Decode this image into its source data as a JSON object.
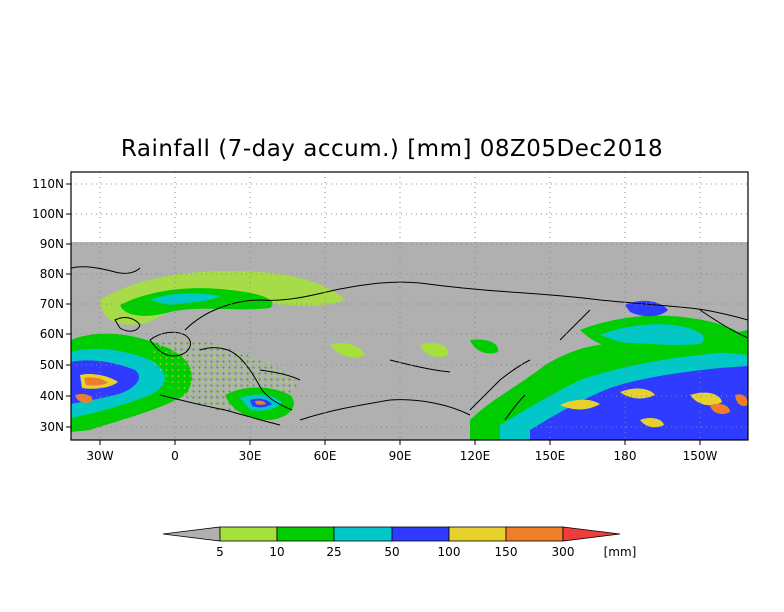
{
  "title": "Rainfall (7-day accum.) [mm] 08Z05Dec2018",
  "map": {
    "lat_labels": [
      "110N",
      "100N",
      "90N",
      "80N",
      "70N",
      "60N",
      "50N",
      "40N",
      "30N"
    ],
    "lon_labels": [
      "30W",
      "0",
      "30E",
      "60E",
      "90E",
      "120E",
      "150E",
      "180",
      "150W"
    ],
    "extent": {
      "lon_min": -45,
      "lon_max": 225,
      "lat_min": 25,
      "lat_max": 115
    },
    "missing_color": "#b0b0b0",
    "coast_color": "#000000",
    "gridlines": "dotted"
  },
  "colorbar": {
    "units": "[mm]",
    "thresholds": [
      "5",
      "10",
      "25",
      "50",
      "100",
      "150",
      "300"
    ],
    "colors": [
      "#b0b0b0",
      "#a6e03c",
      "#00cd00",
      "#00c8c8",
      "#2f3cff",
      "#e6d22d",
      "#f07d28",
      "#f03c3c"
    ]
  }
}
